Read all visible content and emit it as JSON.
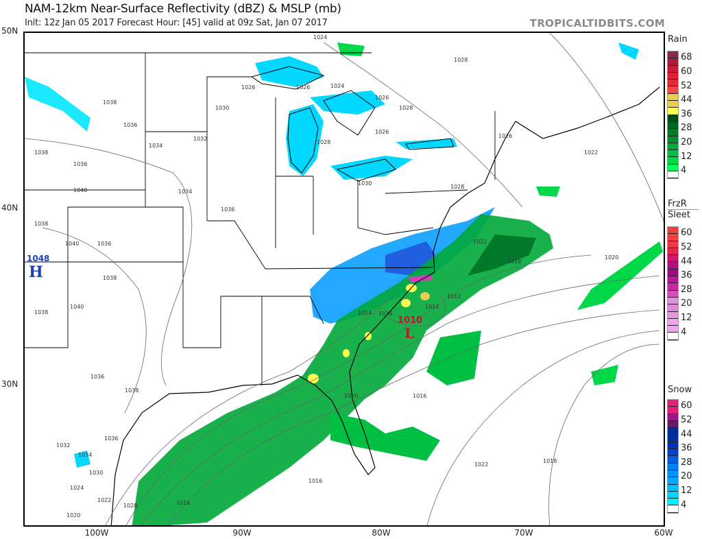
{
  "header": {
    "title": "NAM-12km Near-Surface Reflectivity (dBZ) & MSLP (mb)",
    "subtitle": "Init: 12z Jan 05 2017   Forecast Hour: [45]   valid at 09z Sat, Jan 07 2017",
    "brand": "TROPICALTIDBITS.COM"
  },
  "axes": {
    "lat_labels": [
      "50N",
      "40N",
      "30N"
    ],
    "lon_labels": [
      "100W",
      "90W",
      "80W",
      "70W",
      "60W"
    ]
  },
  "pressure_centers": [
    {
      "type": "H",
      "value": "1048",
      "color": "#1a3fbf"
    },
    {
      "type": "L",
      "value": "1010",
      "color": "#d0102a"
    }
  ],
  "isobar_labels": [
    "1024",
    "1026",
    "1026",
    "1024",
    "1026",
    "1028",
    "1028",
    "1026",
    "1022",
    "1038",
    "1036",
    "1030",
    "1032",
    "1034",
    "1028",
    "1028",
    "1030",
    "1038",
    "1036",
    "1040",
    "1034",
    "1036",
    "1038",
    "1040",
    "1036",
    "1038",
    "1040",
    "1038",
    "1036",
    "1038",
    "1036",
    "1032",
    "1034",
    "1030",
    "1024",
    "1022",
    "1020",
    "1028",
    "1018",
    "1016",
    "1014",
    "1016",
    "1020",
    "1022",
    "1018",
    "1020",
    "1012",
    "1014",
    "1016",
    "1016",
    "1022",
    "1026"
  ],
  "legends": [
    {
      "title": "Rain",
      "ticks": [
        "68",
        "60",
        "52",
        "44",
        "36",
        "28",
        "20",
        "12",
        "4"
      ],
      "colors": [
        "#8b2a4a",
        "#a51e3c",
        "#c41e3a",
        "#e0203a",
        "#e02a3a",
        "#f04848",
        "#e8cf50",
        "#e8cf50",
        "#ffff50",
        "#004d1c",
        "#006622",
        "#007a2a",
        "#009030",
        "#00a838",
        "#00c043",
        "#00d84a",
        "#00ff55",
        "#ffffff"
      ]
    },
    {
      "title": "FrzR",
      "title2": "Sleet",
      "ticks": [
        "60",
        "52",
        "44",
        "36",
        "28",
        "20",
        "12",
        "4"
      ],
      "colors": [
        "#ee4040",
        "#ee4040",
        "#ec3a48",
        "#e02850",
        "#d01870",
        "#b01084",
        "#a00a84",
        "#c012a0",
        "#c828a8",
        "#d050b8",
        "#d898d4",
        "#e088dc",
        "#e898e2",
        "#f0a6ea",
        "#f0a6ea",
        "#ffffff"
      ]
    },
    {
      "title": "Snow",
      "ticks": [
        "60",
        "52",
        "44",
        "36",
        "28",
        "20",
        "12",
        "4"
      ],
      "colors": [
        "#e0207a",
        "#e0207a",
        "#a0148a",
        "#601e60",
        "#00308c",
        "#00309c",
        "#0034b0",
        "#0040d0",
        "#0060e0",
        "#0080f0",
        "#0094ff",
        "#00a8ff",
        "#00c0ff",
        "#00d8ff",
        "#00f2ff",
        "#ffffff"
      ]
    }
  ]
}
